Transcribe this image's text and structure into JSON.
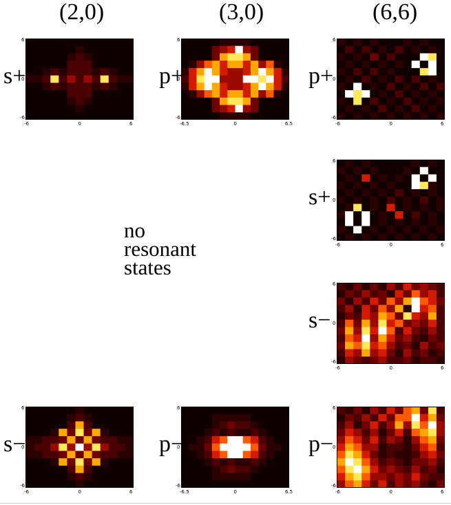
{
  "columns": [
    "(2,0)",
    "(3,0)",
    "(6,6)"
  ],
  "note_lines": [
    "no",
    "resonant",
    "states"
  ],
  "colors": {
    "scale": [
      "#100000",
      "#2a0000",
      "#4a0000",
      "#6e0000",
      "#9a0a00",
      "#d41a00",
      "#ff5a00",
      "#ffa800",
      "#ffe85a",
      "#ffffff"
    ]
  },
  "panels": [
    {
      "id": "2-0-s-plus",
      "label": "s+",
      "col": 0,
      "row": 0,
      "ticks": {
        "xmin": "-6",
        "xmid": "0",
        "xmax": "6",
        "ytop": "6",
        "ymid": "0",
        "ybot": "-6"
      },
      "grid": [
        "0000000000000",
        "0000001000000",
        "0000012100000",
        "0000022200000",
        "0012122212100",
        "1128242428211",
        "0012122212100",
        "0000022200000",
        "0000012100000",
        "0000001000000",
        "0000000000000"
      ]
    },
    {
      "id": "3-0-p-plus",
      "label": "p+",
      "col": 1,
      "row": 0,
      "ticks": {
        "xmin": "-6.5",
        "xmid": "0",
        "xmax": "6.5",
        "ytop": "6",
        "ymid": "0",
        "ybot": "-6"
      },
      "grid": [
        "00000111100000",
        "00003459430000",
        "00003788730000",
        "01467577574610",
        "15797544579751",
        "25899444998952",
        "15797544579751",
        "01467577574610",
        "00003788730000",
        "00003459430000",
        "00000111100000"
      ]
    },
    {
      "id": "6-6-p-plus",
      "label": "p+",
      "col": 2,
      "row": 0,
      "ticks": {
        "xmin": "-6",
        "xmid": "0",
        "xmax": "6",
        "ytop": "6",
        "ymid": "0",
        "ybot": "-6"
      },
      "grid": [
        "1010100010100",
        "0202010201010",
        "1010302000980",
        "0101010109090",
        "1020201000890",
        "0102010202010",
        "1090102010202",
        "0989010201010",
        "1080201020101",
        "0101020102010",
        "1010101010101"
      ]
    },
    {
      "id": "6-6-s-plus",
      "label": "s+",
      "col": 2,
      "row": 1,
      "ticks": {
        "xmin": "-6",
        "xmid": "0",
        "xmax": "6",
        "ytop": "6",
        "ymid": "0",
        "ybot": "-6"
      },
      "grid": [
        "0101000001010",
        "1010100010900",
        "0105010109090",
        "1010101009810",
        "0101010201010",
        "1010102010201",
        "0180105010101",
        "1909010502010",
        "0909010101010",
        "1090101010101",
        "0101010101010"
      ]
    },
    {
      "id": "6-6-s-minus",
      "label": "s−",
      "col": 2,
      "row": 2,
      "ticks": {
        "xmin": "-6",
        "xmid": "0",
        "xmax": "6",
        "ytop": "6",
        "ymid": "0",
        "ybot": "-6"
      },
      "grid": [
        "2131314253432",
        "1324231536452",
        "3142536479653",
        "2415364719562",
        "1325476385472",
        "2637485634352",
        "3748596253242",
        "2659475342132",
        "3768564231423",
        "2547453142312",
        "1432342231221"
      ]
    },
    {
      "id": "2-0-s-minus",
      "label": "s−",
      "col": 0,
      "row": 3,
      "ticks": {
        "xmin": "-6",
        "xmid": "0",
        "xmax": "6",
        "ytop": "6",
        "ymid": "0",
        "ybot": "-6"
      },
      "grid": [
        "0000001000000",
        "0000012100000",
        "0000027200000",
        "0001738371000",
        "1122373732211",
        "1224849484221",
        "1122373732211",
        "0001738371000",
        "0000027200000",
        "0000012100000",
        "0000001000000"
      ]
    },
    {
      "id": "3-0-p-minus",
      "label": "p−",
      "col": 1,
      "row": 3,
      "ticks": {
        "xmin": "-6.5",
        "xmid": "0",
        "xmax": "6.5",
        "ytop": "6",
        "ymid": "0",
        "ybot": "-6"
      },
      "grid": [
        "00000000000000",
        "00001111100000",
        "00001232210000",
        "00012121121000",
        "00125699652100",
        "01136999963110",
        "00125699652100",
        "00012121121000",
        "00001232210000",
        "00001111100000",
        "00000000000000"
      ]
    },
    {
      "id": "6-6-p-minus",
      "label": "p−",
      "col": 2,
      "row": 3,
      "ticks": {
        "xmin": "-6",
        "xmid": "0",
        "xmax": "6",
        "ytop": "6",
        "ymid": "0",
        "ybot": "-6"
      },
      "grid": [
        "2131425367382",
        "1324253669573",
        "2413524748694",
        "3542413526784",
        "4653524314673",
        "5764412213562",
        "6875312112453",
        "7986423213342",
        "6897534324231",
        "5786443435322",
        "4675352434213"
      ]
    }
  ]
}
